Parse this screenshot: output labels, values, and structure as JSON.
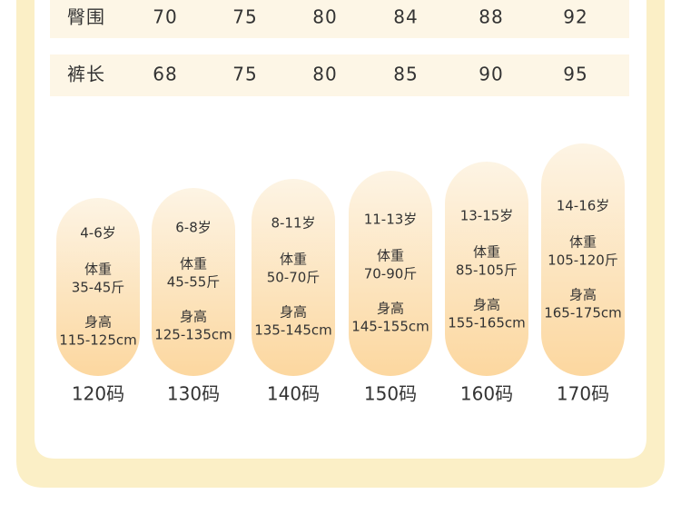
{
  "table": {
    "rows": [
      {
        "label": "臀围",
        "values": [
          70,
          75,
          80,
          84,
          88,
          92
        ]
      },
      {
        "label": "裤长",
        "values": [
          68,
          75,
          80,
          85,
          90,
          95
        ]
      }
    ]
  },
  "sizes": [
    {
      "age": "4-6岁",
      "weight_label": "体重",
      "weight": "35-45斤",
      "height_label": "身高",
      "height": "115-125cm",
      "size": "120码"
    },
    {
      "age": "6-8岁",
      "weight_label": "体重",
      "weight": "45-55斤",
      "height_label": "身高",
      "height": "125-135cm",
      "size": "130码"
    },
    {
      "age": "8-11岁",
      "weight_label": "体重",
      "weight": "50-70斤",
      "height_label": "身高",
      "height": "135-145cm",
      "size": "140码"
    },
    {
      "age": "11-13岁",
      "weight_label": "体重",
      "weight": "70-90斤",
      "height_label": "身高",
      "height": "145-155cm",
      "size": "150码"
    },
    {
      "age": "13-15岁",
      "weight_label": "体重",
      "weight": "85-105斤",
      "height_label": "身高",
      "height": "155-165cm",
      "size": "160码"
    },
    {
      "age": "14-16岁",
      "weight_label": "体重",
      "weight": "105-120斤",
      "height_label": "身高",
      "height": "165-175cm",
      "size": "170码"
    }
  ]
}
